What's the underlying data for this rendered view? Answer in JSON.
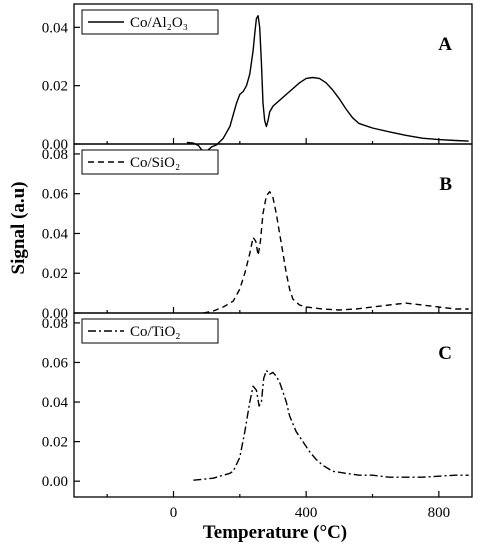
{
  "chart_data": [
    {
      "type": "line",
      "panel_label": "A",
      "legend": "Co/Al₂O₃",
      "line_style": "solid",
      "xlim": [
        -300,
        900
      ],
      "ylim": [
        0,
        0.048
      ],
      "yticks": [
        0.0,
        0.02,
        0.04
      ],
      "ytick_labels": [
        "0.00",
        "0.02",
        "0.04"
      ],
      "series": [
        {
          "x": [
            40,
            60,
            75,
            85,
            95,
            105,
            115,
            130,
            150,
            170,
            180,
            190,
            200,
            210,
            220,
            230,
            240,
            245,
            250,
            255,
            260,
            265,
            270,
            275,
            280,
            285,
            290,
            300,
            320,
            340,
            360,
            380,
            400,
            420,
            440,
            460,
            480,
            500,
            520,
            540,
            560,
            600,
            650,
            700,
            750,
            800,
            850,
            890
          ],
          "y": [
            0.0005,
            0.0003,
            -0.0005,
            -0.002,
            -0.003,
            -0.002,
            -0.001,
            -0.0003,
            0.002,
            0.006,
            0.01,
            0.014,
            0.017,
            0.018,
            0.02,
            0.024,
            0.032,
            0.038,
            0.043,
            0.044,
            0.04,
            0.028,
            0.014,
            0.008,
            0.006,
            0.008,
            0.011,
            0.013,
            0.015,
            0.017,
            0.019,
            0.021,
            0.0225,
            0.0228,
            0.0225,
            0.021,
            0.0185,
            0.0155,
            0.012,
            0.009,
            0.007,
            0.0055,
            0.0042,
            0.003,
            0.002,
            0.0015,
            0.0012,
            0.001
          ]
        }
      ]
    },
    {
      "type": "line",
      "panel_label": "B",
      "legend": "Co/SiO₂",
      "line_style": "dashed",
      "xlim": [
        -300,
        900
      ],
      "ylim": [
        0,
        0.085
      ],
      "yticks": [
        0.0,
        0.02,
        0.04,
        0.06,
        0.08
      ],
      "ytick_labels": [
        "0.00",
        "0.02",
        "0.04",
        "0.06",
        "0.08"
      ],
      "series": [
        {
          "x": [
            90,
            120,
            150,
            180,
            200,
            215,
            230,
            240,
            248,
            255,
            262,
            270,
            280,
            290,
            300,
            310,
            320,
            330,
            340,
            350,
            360,
            380,
            400,
            450,
            500,
            550,
            600,
            650,
            700,
            750,
            800,
            850,
            890
          ],
          "y": [
            0.0,
            0.001,
            0.003,
            0.006,
            0.012,
            0.02,
            0.03,
            0.038,
            0.036,
            0.029,
            0.036,
            0.05,
            0.059,
            0.061,
            0.058,
            0.05,
            0.04,
            0.03,
            0.02,
            0.012,
            0.007,
            0.004,
            0.003,
            0.002,
            0.0015,
            0.002,
            0.003,
            0.004,
            0.005,
            0.004,
            0.003,
            0.002,
            0.002
          ]
        }
      ]
    },
    {
      "type": "line",
      "panel_label": "C",
      "legend": "Co/TiO₂",
      "line_style": "dashdot",
      "xlim": [
        -300,
        900
      ],
      "ylim": [
        -0.008,
        0.085
      ],
      "yticks": [
        0.0,
        0.02,
        0.04,
        0.06,
        0.08
      ],
      "ytick_labels": [
        "0.00",
        "0.02",
        "0.04",
        "0.06",
        "0.08"
      ],
      "xticks": [
        0,
        400,
        800
      ],
      "xtick_labels": [
        "0",
        "400",
        "800"
      ],
      "series": [
        {
          "x": [
            60,
            90,
            120,
            150,
            170,
            180,
            200,
            215,
            230,
            240,
            250,
            258,
            265,
            272,
            280,
            290,
            300,
            310,
            320,
            330,
            340,
            350,
            370,
            390,
            410,
            430,
            450,
            480,
            520,
            560,
            600,
            650,
            700,
            750,
            800,
            850,
            890
          ],
          "y": [
            0.0005,
            0.001,
            0.0015,
            0.003,
            0.004,
            0.005,
            0.012,
            0.025,
            0.04,
            0.048,
            0.046,
            0.038,
            0.04,
            0.052,
            0.056,
            0.054,
            0.055,
            0.053,
            0.05,
            0.045,
            0.04,
            0.033,
            0.025,
            0.02,
            0.015,
            0.011,
            0.008,
            0.005,
            0.004,
            0.003,
            0.003,
            0.002,
            0.002,
            0.002,
            0.0025,
            0.003,
            0.003
          ]
        }
      ]
    }
  ],
  "axes": {
    "xlabel": "Temperature (°C)",
    "ylabel": "Signal (a.u)"
  }
}
